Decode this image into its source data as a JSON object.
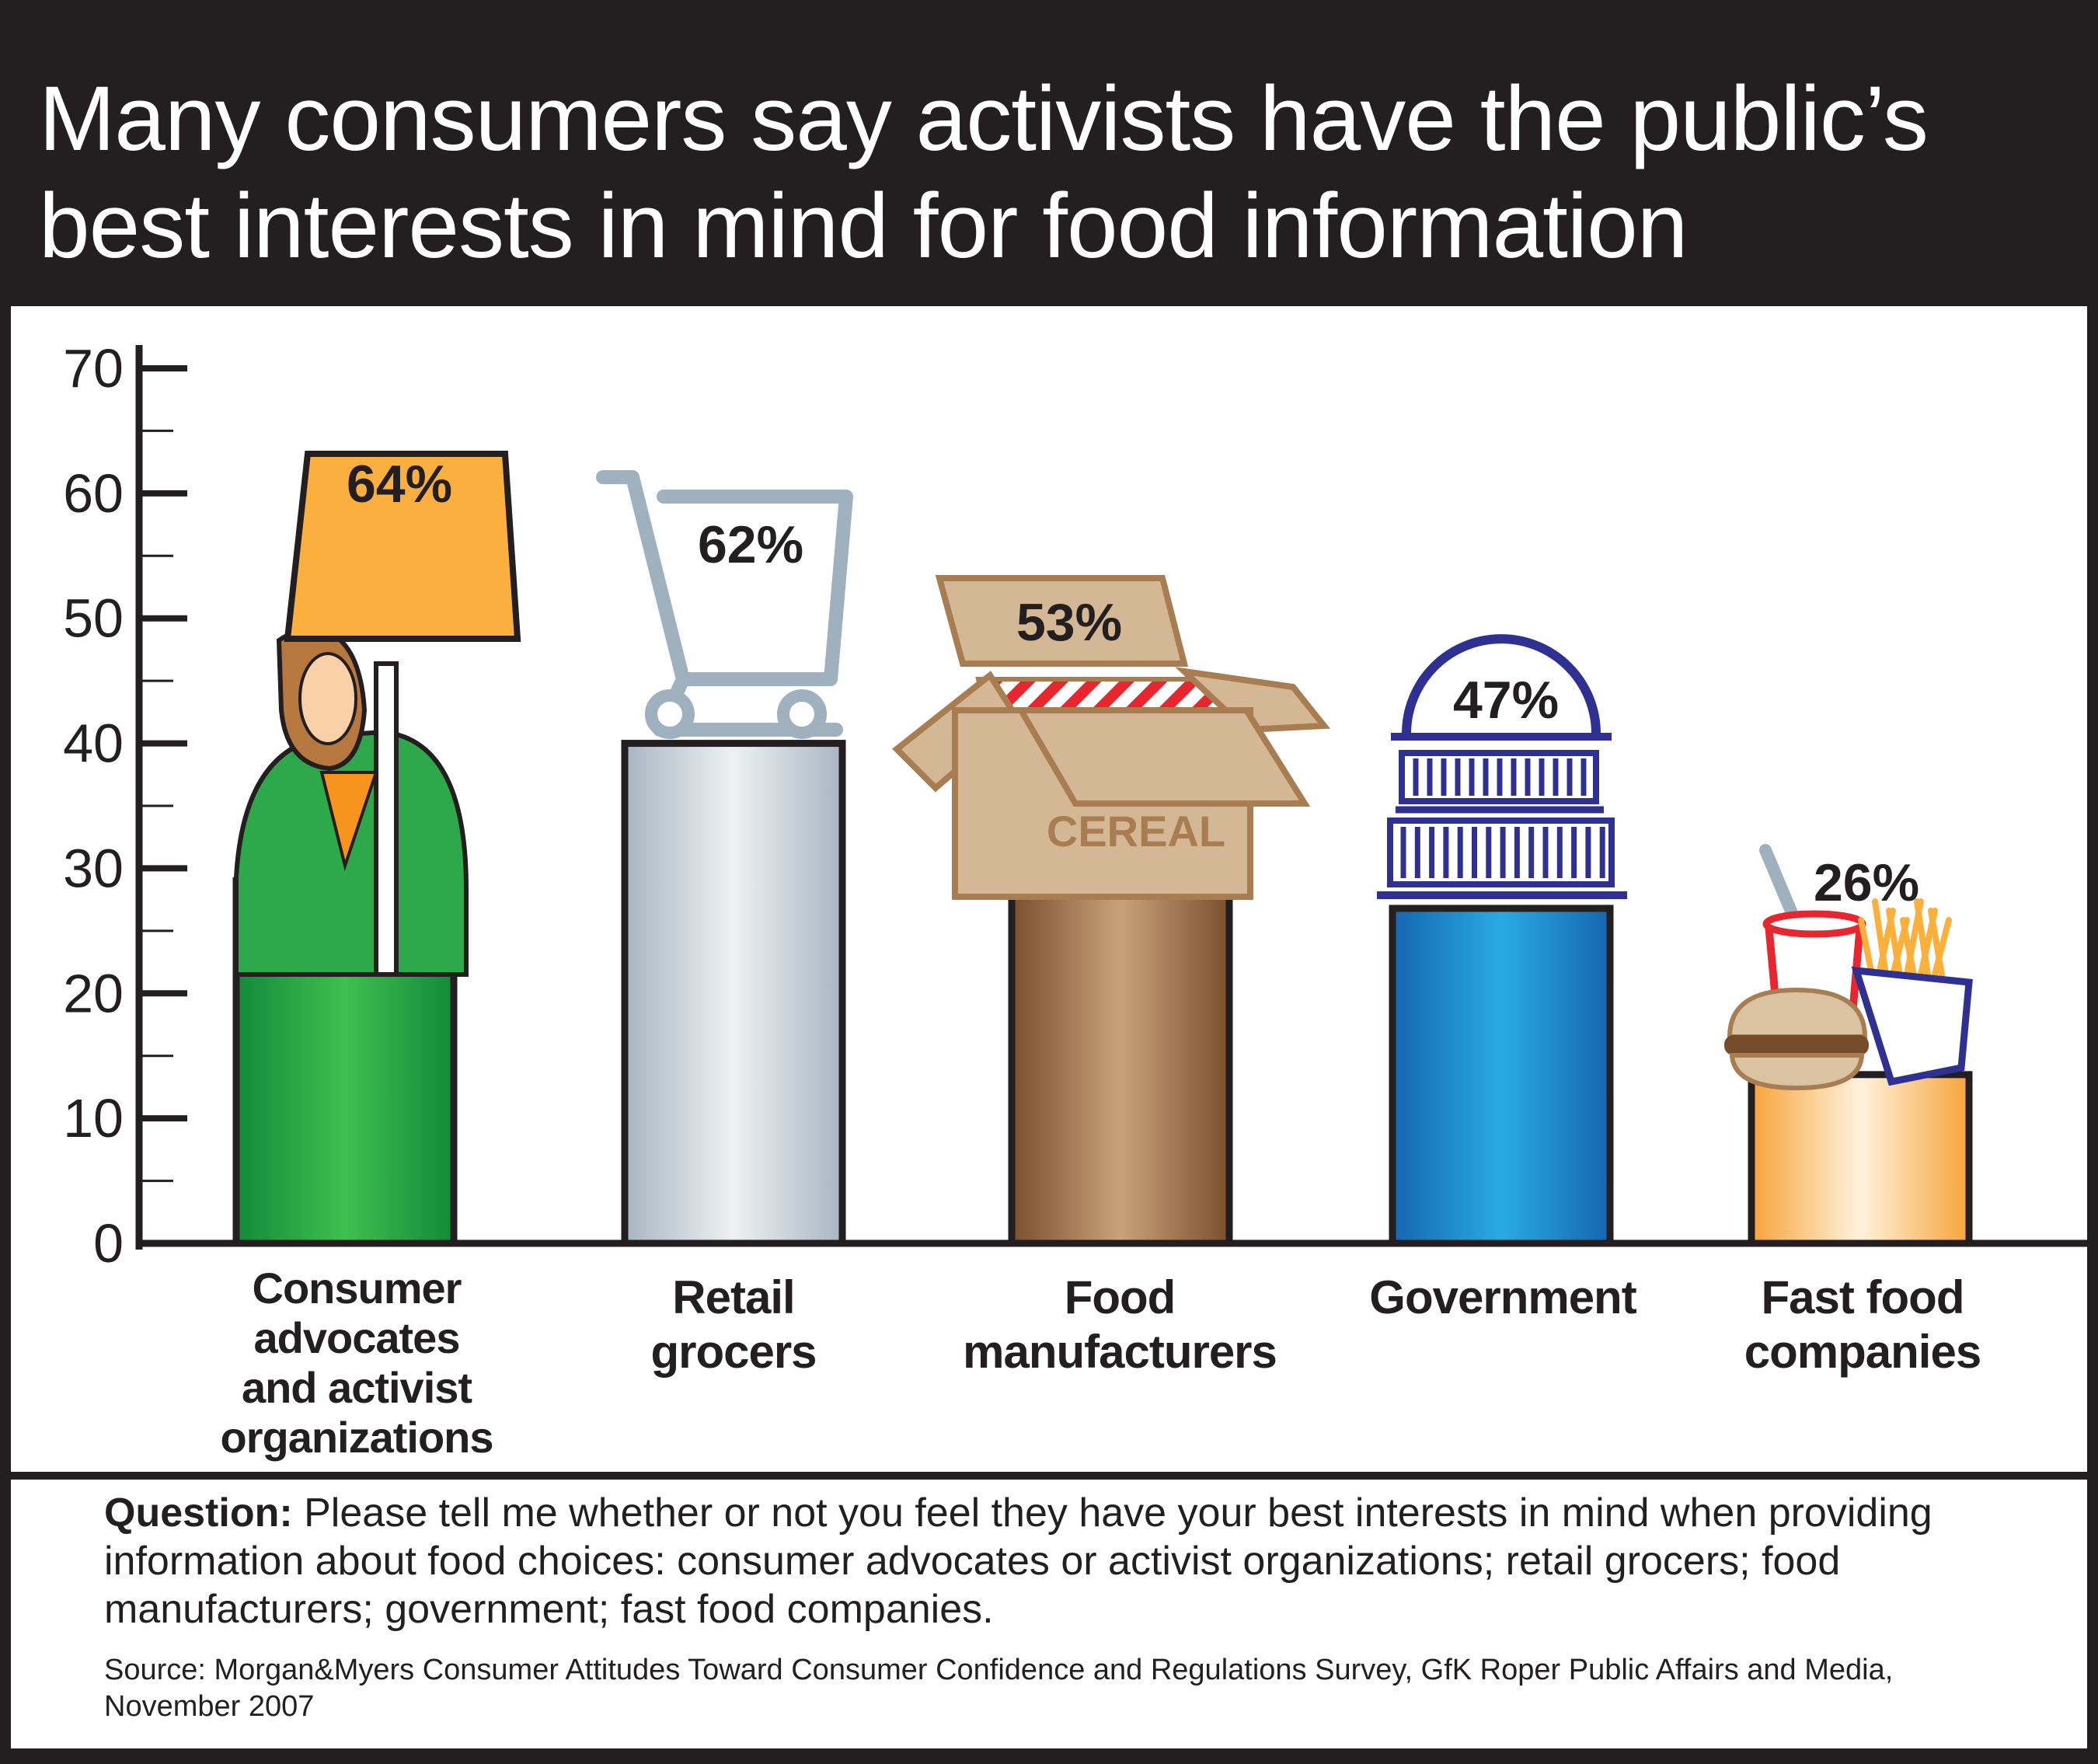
{
  "colors": {
    "frame": "#231f20",
    "consumer": "#2da84a",
    "retail": "#c7d0d8",
    "food": "#a87d52",
    "government": "#1f8fd6",
    "fastfood": "#fbbd6a",
    "sign": "#fbaf3f",
    "cart": "#9fb0bf",
    "box": "#d4b895",
    "capitol": "#2e3192"
  },
  "chart_data": {
    "type": "bar",
    "title_lines": [
      "Many consumers say activists have the public’s",
      "best interests in mind for food information"
    ],
    "categories": [
      "Consumer advocates and activist organizations",
      "Retail grocers",
      "Food manufacturers",
      "Government",
      "Fast food companies"
    ],
    "category_label_lines": [
      [
        "Consumer",
        "advocates",
        "and activist",
        "organizations"
      ],
      [
        "Retail",
        "grocers"
      ],
      [
        "Food",
        "manufacturers"
      ],
      [
        "Government"
      ],
      [
        "Fast food",
        "companies"
      ]
    ],
    "values": [
      64,
      62,
      53,
      47,
      26
    ],
    "value_labels": [
      "64%",
      "62%",
      "53%",
      "47%",
      "26%"
    ],
    "ylim": [
      0,
      70
    ],
    "yticks": [
      0,
      10,
      20,
      30,
      40,
      50,
      60,
      70
    ],
    "yticklabels": [
      "0",
      "10",
      "20",
      "30",
      "40",
      "50",
      "60",
      "70"
    ],
    "box_label": "CEREAL",
    "icons": [
      "protester-sign-icon",
      "shopping-cart-icon",
      "cereal-box-icon",
      "capitol-dome-icon",
      "fast-food-meal-icon"
    ],
    "grid": false,
    "legend": "none"
  },
  "footnote": {
    "question_label": "Question:",
    "question_text": "Please tell me whether or not you feel they have your best interests in mind when providing information about food choices: consumer advocates or activist organizations; retail grocers; food manufacturers; government; fast food companies.",
    "source": "Source: Morgan&Myers Consumer Attitudes Toward Consumer Confidence and Regulations Survey, GfK Roper Public Affairs and Media, November 2007"
  }
}
